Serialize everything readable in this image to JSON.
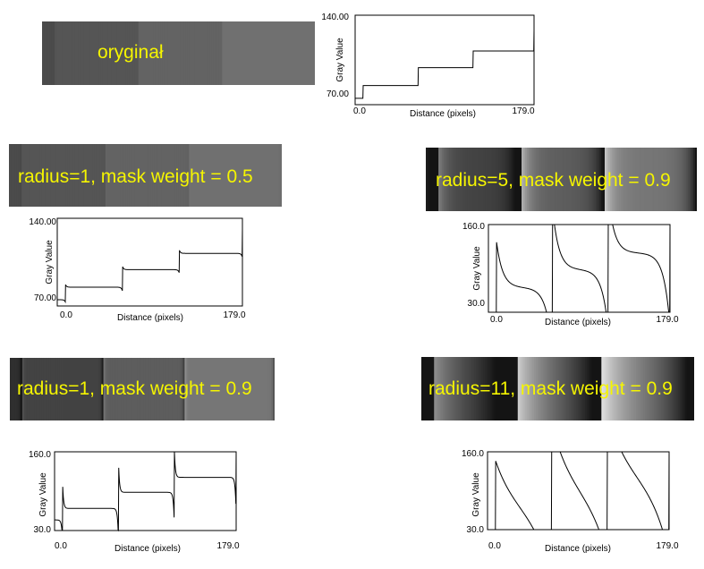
{
  "panels": [
    {
      "label": "oryginał"
    },
    {
      "label": "radius=1, mask weight = 0.5"
    },
    {
      "label": "radius=5, mask weight = 0.9"
    },
    {
      "label": "radius=1, mask weight = 0.9"
    },
    {
      "label": "radius=11, mask weight = 0.9"
    }
  ],
  "chart_data": [
    {
      "type": "line",
      "xlabel": "Distance (pixels)",
      "ylabel": "Gray Value",
      "x_min_label": "0.0",
      "x_max_label": "179.0",
      "y_min_label": "70.00",
      "y_max_label": "140.00",
      "xlim": [
        0,
        179
      ],
      "ylim": [
        70,
        140
      ],
      "filter": "none",
      "steps": [
        0,
        8,
        63,
        118,
        179
      ],
      "levels": [
        75,
        85,
        99,
        112,
        128
      ]
    },
    {
      "type": "line",
      "xlabel": "Distance (pixels)",
      "ylabel": "Gray Value",
      "x_min_label": "0.0",
      "x_max_label": "179.0",
      "y_min_label": "70.00",
      "y_max_label": "140.00",
      "xlim": [
        0,
        179
      ],
      "ylim": [
        70,
        140
      ],
      "filter": "radius=1, mask weight=0.5",
      "steps": [
        0,
        8,
        63,
        118,
        179
      ],
      "levels": [
        75,
        85,
        99,
        112,
        128
      ]
    },
    {
      "type": "line",
      "xlabel": "Distance (pixels)",
      "ylabel": "Gray Value",
      "x_min_label": "0.0",
      "x_max_label": "179.0",
      "y_min_label": "30.0",
      "y_max_label": "160.0",
      "xlim": [
        0,
        179
      ],
      "ylim": [
        30,
        160
      ],
      "filter": "radius=5, mask weight=0.9",
      "steps": [
        0,
        8,
        63,
        118,
        179
      ],
      "levels": [
        75,
        85,
        99,
        112,
        128
      ]
    },
    {
      "type": "line",
      "xlabel": "Distance (pixels)",
      "ylabel": "Gray Value",
      "x_min_label": "0.0",
      "x_max_label": "179.0",
      "y_min_label": "30.0",
      "y_max_label": "160.0",
      "xlim": [
        0,
        179
      ],
      "ylim": [
        30,
        160
      ],
      "filter": "radius=1, mask weight=0.9",
      "steps": [
        0,
        8,
        63,
        118,
        179
      ],
      "levels": [
        75,
        85,
        99,
        112,
        128
      ]
    },
    {
      "type": "line",
      "xlabel": "Distance (pixels)",
      "ylabel": "Gray Value",
      "x_min_label": "0.0",
      "x_max_label": "179.0",
      "y_min_label": "30.0",
      "y_max_label": "160.0",
      "xlim": [
        0,
        179
      ],
      "ylim": [
        30,
        160
      ],
      "filter": "radius=11, mask weight=0.9",
      "steps": [
        0,
        8,
        63,
        118,
        179
      ],
      "levels": [
        75,
        85,
        99,
        112,
        128
      ]
    }
  ]
}
